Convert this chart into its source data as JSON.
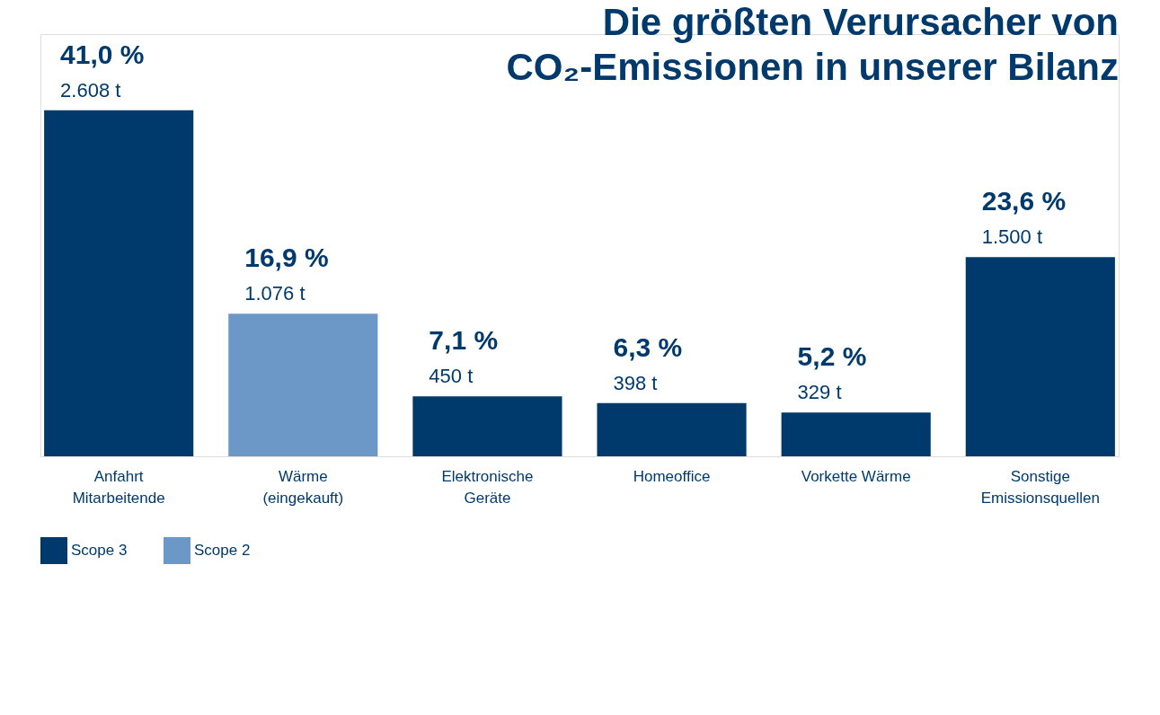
{
  "chart_data": {
    "type": "bar",
    "title": [
      "Die größten Verursacher von",
      "CO₂-Emissionen in unserer Bilanz"
    ],
    "categories": [
      "Anfahrt\nMitarbeitende",
      "Wärme\n(eingekauft)",
      "Elektronische\nGeräte",
      "Homeoffice",
      "Vorkette Wärme",
      "Sonstige\nEmissionsquellen"
    ],
    "series": [
      {
        "name": "Scope 3",
        "color": "#003a6c",
        "values": [
          41.0,
          null,
          7.1,
          6.3,
          5.2,
          null
        ],
        "value_labels": [
          "41,0 %",
          null,
          "7,1 %",
          "6,3 %",
          "5,2 %",
          null
        ]
      },
      {
        "name": "Scope 2",
        "color": "#6b98c6",
        "values": [
          null,
          16.9,
          null,
          null,
          null,
          null
        ],
        "value_labels": [
          null,
          "16,9 %",
          null,
          null,
          null,
          null
        ]
      },
      {
        "color": "#003a6c",
        "values": [
          null,
          null,
          null,
          null,
          null,
          23.6
        ],
        "value_labels": [
          null,
          null,
          null,
          null,
          null,
          "23,6 %"
        ]
      }
    ],
    "annotations": [
      {
        "text": "2.608 t",
        "x": "Anfahrt\nMitarbeitende",
        "y": 41.0
      },
      {
        "text": "1.076 t",
        "x": "Wärme\n(eingekauft)",
        "y": 16.9
      },
      {
        "text": "450 t",
        "x": "Elektronische\nGeräte",
        "y": 7.1
      },
      {
        "text": "398 t",
        "x": "Homeoffice",
        "y": 6.3
      },
      {
        "text": "329 t",
        "x": "Vorkette Wärme",
        "y": 5.2
      },
      {
        "text": "1.500 t",
        "x": "Sonstige\nEmissionsquellen",
        "y": 23.6
      }
    ],
    "legend": "bottom left"
  }
}
